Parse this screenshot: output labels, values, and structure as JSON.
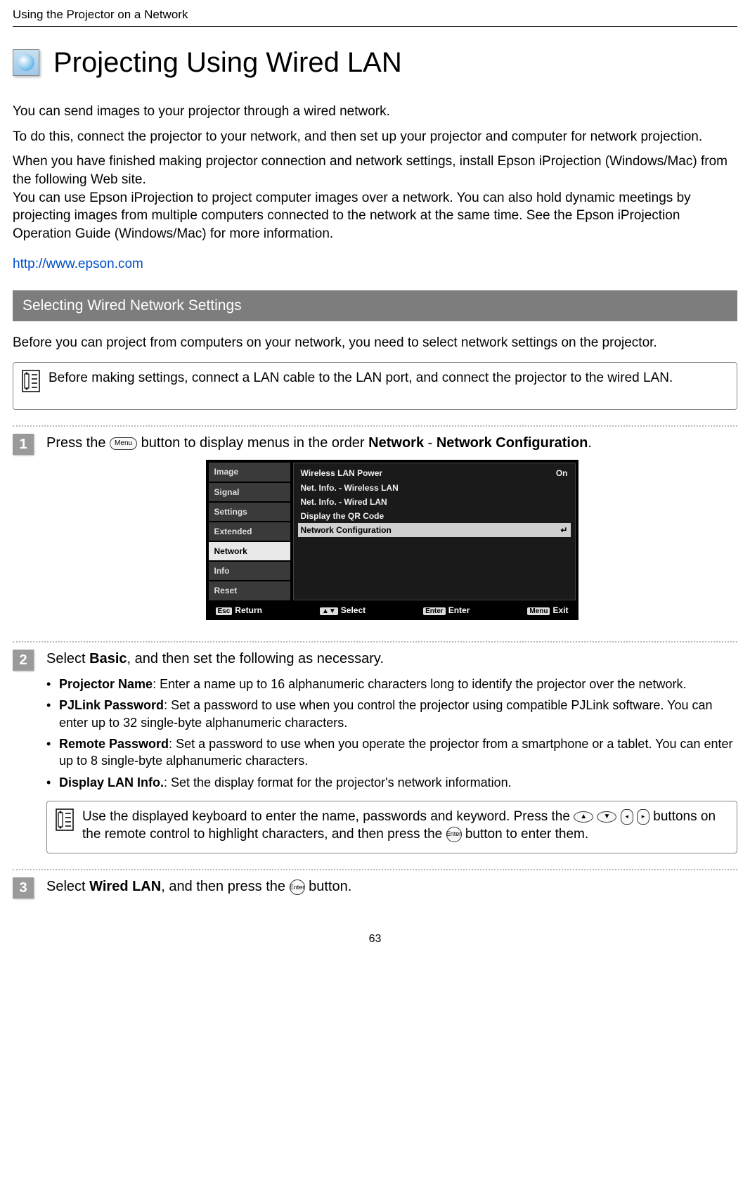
{
  "breadcrumb": "Using the Projector on a Network",
  "title": "Projecting Using Wired LAN",
  "intro": {
    "p1": "You can send images to your projector through a wired network.",
    "p2": "To do this, connect the projector to your network, and then set up your projector and computer for network projection.",
    "p3": "When you have finished making projector connection and network settings, install Epson iProjection (Windows/Mac) from the following Web site.\nYou can use Epson iProjection to project computer images over a network. You can also hold dynamic meetings by projecting images from multiple computers connected to the network at the same time. See the Epson iProjection Operation Guide (Windows/Mac) for more information."
  },
  "link": "http://www.epson.com",
  "section_title": "Selecting Wired Network Settings",
  "lead": "Before you can project from computers on your network, you need to select network settings on the projector.",
  "note1": "Before making settings, connect a LAN cable to the LAN port, and connect the projector to the wired LAN.",
  "step1": {
    "num": "1",
    "pre": "Press the ",
    "btn": "Menu",
    "mid": " button to display menus in the order ",
    "b1": "Network",
    "sep": " - ",
    "b2": "Network Configuration",
    "post": "."
  },
  "menu": {
    "tabs": [
      "Image",
      "Signal",
      "Settings",
      "Extended",
      "Network",
      "Info",
      "Reset"
    ],
    "active_tab": "Network",
    "rows": [
      {
        "label": "Wireless LAN Power",
        "value": "On",
        "hl": false
      },
      {
        "label": "Net. Info. - Wireless LAN",
        "value": "",
        "hl": false
      },
      {
        "label": "Net. Info. - Wired LAN",
        "value": "",
        "hl": false
      },
      {
        "label": "Display the QR Code",
        "value": "",
        "hl": false
      },
      {
        "label": "Network Configuration",
        "value": "↵",
        "hl": true
      }
    ],
    "foot": {
      "return": {
        "key": "Esc",
        "label": "Return"
      },
      "select": {
        "key": "▲▼",
        "label": "Select"
      },
      "enter": {
        "key": "Enter",
        "label": "Enter"
      },
      "exit": {
        "key": "Menu",
        "label": "Exit"
      }
    }
  },
  "step2": {
    "num": "2",
    "head_pre": "Select ",
    "head_b": "Basic",
    "head_post": ", and then set the following as necessary.",
    "items": [
      {
        "b": "Projector Name",
        "t": ": Enter a name up to 16 alphanumeric characters long to identify the projector over the network."
      },
      {
        "b": "PJLink Password",
        "t": ": Set a password to use when you control the projector using compatible PJLink software. You can enter up to 32 single-byte alphanumeric characters."
      },
      {
        "b": "Remote Password",
        "t": ": Set a password to use when you operate the projector from a smartphone or a tablet. You can enter up to 8 single-byte alphanumeric characters."
      },
      {
        "b": "Display LAN Info.",
        "t": ": Set the display format for the projector's network information."
      }
    ],
    "note_pre": "Use the displayed keyboard to enter the name, passwords and keyword. Press the ",
    "note_mid": " buttons on the remote control to highlight characters, and then press the ",
    "note_enter": "Enter",
    "note_post": " button to enter them."
  },
  "step3": {
    "num": "3",
    "pre": "Select ",
    "b": "Wired LAN",
    "mid": ", and then press the ",
    "btn": "Enter",
    "post": " button."
  },
  "page_number": "63",
  "colors": {
    "link": "#0050c8",
    "section_bar_bg": "#7d7d7d",
    "step_num_bg": "#9a9a9a"
  }
}
